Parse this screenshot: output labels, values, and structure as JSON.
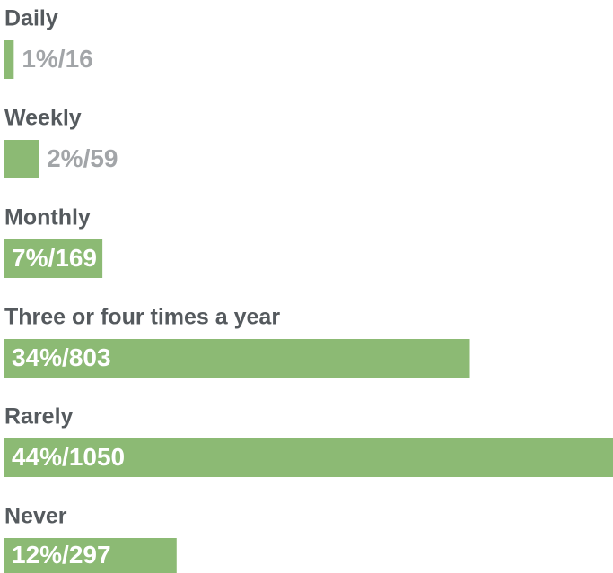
{
  "chart_data": {
    "type": "bar",
    "orientation": "horizontal",
    "categories": [
      "Daily",
      "Weekly",
      "Monthly",
      "Three or four times a year",
      "Rarely",
      "Never"
    ],
    "values": [
      16,
      59,
      169,
      803,
      1050,
      297
    ],
    "value_labels": [
      "1%/16",
      "2%/59",
      "7%/169",
      "34%/803",
      "44%/1050",
      "12%/297"
    ],
    "color": "#8cba74",
    "xlim": [
      0,
      1050
    ]
  }
}
